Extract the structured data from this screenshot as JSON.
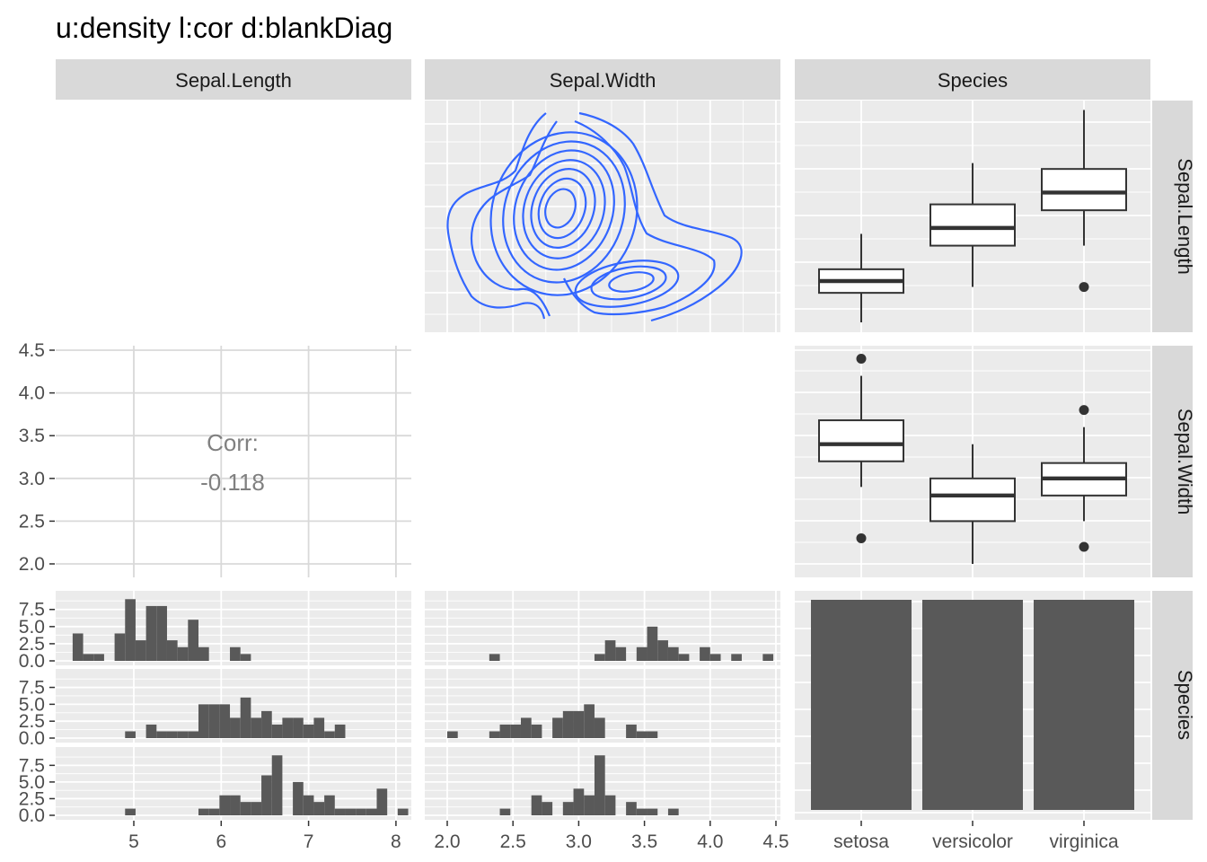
{
  "title": "u:density l:cor d:blankDiag",
  "chart_data": {
    "type": "pairs",
    "columns": [
      "Sepal.Length",
      "Sepal.Width",
      "Species"
    ],
    "rows": [
      "Sepal.Length",
      "Sepal.Width",
      "Species"
    ],
    "x_ticks": {
      "Sepal.Length": [
        "5",
        "6",
        "7",
        "8"
      ],
      "Sepal.Width": [
        "2.0",
        "2.5",
        "3.0",
        "3.5",
        "4.0",
        "4.5"
      ],
      "Species": [
        "setosa",
        "versicolor",
        "virginica"
      ]
    },
    "y_ticks": {
      "Sepal.Width": [
        "2.0",
        "2.5",
        "3.0",
        "3.5",
        "4.0",
        "4.5"
      ],
      "histogram_counts": [
        "0.0",
        "2.5",
        "5.0",
        "7.5"
      ]
    },
    "correlation": {
      "label": "Corr:",
      "value": "-0.118"
    },
    "boxplots_sepal_length": [
      {
        "group": "setosa",
        "min": 4.3,
        "q1": 4.8,
        "median": 5.0,
        "q3": 5.2,
        "max": 5.8,
        "outliers": []
      },
      {
        "group": "versicolor",
        "min": 4.9,
        "q1": 5.6,
        "median": 5.9,
        "q3": 6.3,
        "max": 7.0,
        "outliers": []
      },
      {
        "group": "virginica",
        "min": 5.6,
        "q1": 6.2,
        "median": 6.5,
        "q3": 6.9,
        "max": 7.9,
        "outliers": [
          4.9
        ]
      }
    ],
    "boxplots_sepal_width": [
      {
        "group": "setosa",
        "min": 2.9,
        "q1": 3.2,
        "median": 3.4,
        "q3": 3.68,
        "max": 4.2,
        "outliers": [
          4.4,
          2.3
        ]
      },
      {
        "group": "versicolor",
        "min": 2.0,
        "q1": 2.5,
        "median": 2.8,
        "q3": 3.0,
        "max": 3.4,
        "outliers": []
      },
      {
        "group": "virginica",
        "min": 2.5,
        "q1": 2.8,
        "median": 3.0,
        "q3": 3.18,
        "max": 3.6,
        "outliers": [
          3.8,
          2.2
        ]
      }
    ],
    "species_counts": [
      {
        "group": "setosa",
        "count": 50
      },
      {
        "group": "versicolor",
        "count": 50
      },
      {
        "group": "virginica",
        "count": 50
      }
    ],
    "histograms_sepal_length": [
      {
        "group": "setosa",
        "bin_width": 0.12,
        "start": 4.3,
        "counts": [
          4,
          1,
          1,
          0,
          4,
          9,
          3,
          8,
          8,
          3,
          2,
          6,
          2,
          0,
          0,
          2,
          1,
          0,
          0,
          0,
          0,
          0,
          0,
          0,
          0,
          0,
          0,
          0,
          0,
          0
        ]
      },
      {
        "group": "versicolor",
        "bin_width": 0.12,
        "start": 4.3,
        "counts": [
          0,
          0,
          0,
          0,
          0,
          1,
          0,
          2,
          1,
          1,
          1,
          1,
          5,
          5,
          5,
          3,
          6,
          3,
          4,
          2,
          3,
          3,
          2,
          3,
          1,
          2,
          0,
          0,
          0,
          0
        ]
      },
      {
        "group": "virginica",
        "bin_width": 0.12,
        "start": 4.3,
        "counts": [
          0,
          0,
          0,
          0,
          0,
          1,
          0,
          0,
          0,
          0,
          0,
          0,
          1,
          1,
          3,
          3,
          2,
          2,
          6,
          9,
          0,
          5,
          3,
          2,
          3,
          1,
          1,
          1,
          1,
          4,
          0,
          1
        ]
      }
    ],
    "histograms_sepal_width": [
      {
        "group": "setosa",
        "bin_width": 0.08,
        "start": 2.0,
        "counts": [
          0,
          0,
          0,
          0,
          1,
          0,
          0,
          0,
          0,
          0,
          0,
          0,
          0,
          0,
          1,
          3,
          2,
          0,
          2,
          5,
          3,
          2,
          1,
          0,
          2,
          1,
          0,
          1,
          0,
          0,
          1,
          0,
          0,
          0,
          0,
          1
        ]
      },
      {
        "group": "versicolor",
        "bin_width": 0.08,
        "start": 2.0,
        "counts": [
          1,
          0,
          0,
          0,
          1,
          2,
          2,
          3,
          2,
          0,
          3,
          4,
          4,
          5,
          3,
          0,
          0,
          2,
          1,
          1,
          0,
          0,
          0,
          0,
          0,
          0,
          0,
          0,
          0,
          0,
          0,
          0,
          0,
          0,
          0,
          0
        ]
      },
      {
        "group": "virginica",
        "bin_width": 0.08,
        "start": 2.0,
        "counts": [
          0,
          0,
          0,
          0,
          0,
          1,
          0,
          0,
          3,
          2,
          0,
          2,
          4,
          3,
          9,
          3,
          0,
          2,
          1,
          1,
          0,
          1,
          0,
          0,
          0,
          0,
          0,
          0,
          0,
          0,
          0,
          0,
          0,
          0,
          0,
          0
        ]
      }
    ],
    "density_contours": {
      "x_var": "Sepal.Width",
      "y_var": "Sepal.Length",
      "note": "2D density contours, blue lines, two modes near (2.8, 6.2) and (3.4, 5.0)"
    }
  }
}
